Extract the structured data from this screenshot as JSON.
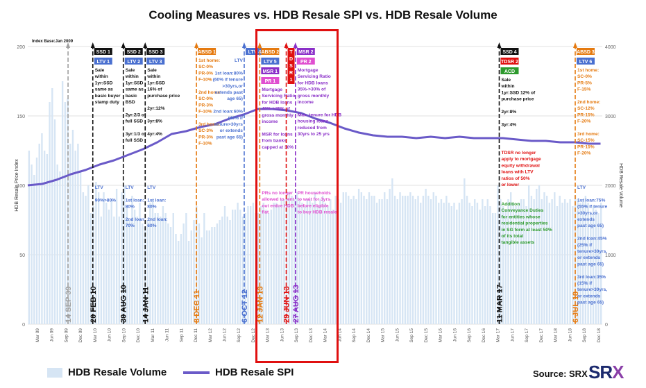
{
  "chart_data": {
    "type": "bar+line",
    "title": "Cooling Measures vs. HDB Resale SPI vs. HDB Resale Volume",
    "index_base": "Index Base:Jan 2009",
    "ylabel_left": "HDB Resale Price Index",
    "ylabel_right": "HDB Resale Volume",
    "ylim_left": [
      0,
      200
    ],
    "ylim_right": [
      0,
      4000
    ],
    "left_ticks": [
      "0",
      "50",
      "100",
      "150",
      "200"
    ],
    "right_ticks": [
      "0",
      "1000",
      "2000",
      "3000",
      "4000"
    ],
    "x_tick_labels": [
      "Mar 09",
      "Jun 09",
      "Sep 09",
      "Dec 09",
      "Mar 10",
      "Jun 10",
      "Sep 10",
      "Dec 10",
      "Mar 11",
      "Jun 11",
      "Sep 11",
      "Dec 11",
      "Mar 12",
      "Jun 12",
      "Sep 12",
      "Dec 12",
      "Mar 13",
      "Jun 13",
      "Sep 13",
      "Dec 13",
      "Mar 14",
      "Jun 14",
      "Sep 14",
      "Dec 14",
      "Mar 15",
      "Jun 15",
      "Sep 15",
      "Dec 15",
      "Mar 16",
      "Jun 16",
      "Sep 16",
      "Dec 16",
      "Mar 17",
      "Jun 17",
      "Sep 17",
      "Dec 17",
      "Mar 18",
      "Jun 18",
      "Sep 18",
      "Dec 18"
    ],
    "series": [
      {
        "name": "HDB Resale Volume",
        "type": "bar",
        "axis": "right",
        "values": [
          2500,
          2300,
          2150,
          2400,
          2600,
          2750,
          2500,
          2450,
          3200,
          3400,
          2950,
          2300,
          2200,
          3500,
          3200,
          3250,
          2600,
          2800,
          2500,
          2600,
          2200,
          1900,
          1850,
          2000,
          1600,
          1700,
          2050,
          1900,
          1550,
          1900,
          1750,
          1650,
          1800,
          1550,
          1950,
          1550,
          1900,
          2000,
          1700,
          1500,
          1850,
          1650,
          1550,
          1750,
          1450,
          1400,
          1500,
          1750,
          1800,
          1600,
          1600,
          1550,
          1700,
          1600,
          1450,
          1400,
          1600,
          1300,
          1200,
          1300,
          1450,
          1600,
          1200,
          1350,
          1500,
          1700,
          1450,
          1250,
          1600,
          1350,
          1350,
          1400,
          1400,
          1450,
          1500,
          1550,
          1700,
          1550,
          1500,
          1650,
          1650,
          1750,
          1650,
          1550,
          1600,
          1700,
          1700,
          1750,
          1600,
          1600,
          1700,
          1750,
          1650,
          1600,
          1650,
          1750,
          1750,
          1700,
          1800,
          1800,
          1850,
          1900,
          1850,
          1800,
          1900,
          1800,
          1750,
          1700,
          1800,
          1800,
          1750,
          1900,
          1700,
          1800,
          1850,
          1750,
          1700,
          1800,
          1650,
          1850,
          1800,
          1750,
          1900,
          1900,
          1850,
          1800,
          1850,
          1800,
          1950,
          1900,
          1850,
          1800,
          1900,
          1850,
          1850,
          1750,
          1800,
          1800,
          1900,
          1800,
          1950,
          2100,
          1850,
          1800,
          1900,
          1850,
          1850,
          1850,
          1900,
          1850,
          1800,
          1850,
          1750,
          1850,
          1950,
          1850,
          1800,
          1900,
          1850,
          1750,
          1800,
          1750,
          1850,
          1750,
          1700,
          1750,
          1650,
          1750,
          1800,
          2100,
          1850,
          1750,
          1700,
          1800,
          1750,
          1650,
          1800,
          1700,
          1800,
          1700,
          1600,
          1600,
          2000,
          1800,
          1700,
          1650,
          1800,
          1900,
          1750,
          1700,
          1750,
          1800,
          1800,
          1700,
          2000,
          1850,
          1800,
          1950,
          2000,
          1800,
          1900,
          1850,
          1750,
          1800,
          1900,
          1700,
          1850,
          1750,
          1800,
          1750,
          1800,
          1700,
          1850,
          1800,
          1750,
          1800,
          1850,
          1750,
          1600,
          1700,
          1650,
          1600,
          1750
        ]
      },
      {
        "name": "HDB Resale SPI",
        "type": "line",
        "axis": "left",
        "points": [
          [
            2009.0,
            100
          ],
          [
            2009.25,
            101
          ],
          [
            2009.5,
            104
          ],
          [
            2009.75,
            108
          ],
          [
            2010.0,
            111
          ],
          [
            2010.25,
            115
          ],
          [
            2010.5,
            118
          ],
          [
            2010.75,
            122
          ],
          [
            2011.0,
            126
          ],
          [
            2011.25,
            131
          ],
          [
            2011.5,
            137
          ],
          [
            2011.75,
            139
          ],
          [
            2012.0,
            142
          ],
          [
            2012.25,
            144
          ],
          [
            2012.5,
            148
          ],
          [
            2012.75,
            151
          ],
          [
            2013.0,
            155
          ],
          [
            2013.25,
            155
          ],
          [
            2013.5,
            154
          ],
          [
            2013.75,
            152
          ],
          [
            2014.0,
            148
          ],
          [
            2014.25,
            145
          ],
          [
            2014.5,
            141
          ],
          [
            2014.75,
            138
          ],
          [
            2015.0,
            136
          ],
          [
            2015.25,
            135
          ],
          [
            2015.5,
            135
          ],
          [
            2015.75,
            134
          ],
          [
            2016.0,
            135
          ],
          [
            2016.25,
            134
          ],
          [
            2016.5,
            135
          ],
          [
            2016.75,
            134
          ],
          [
            2017.0,
            134
          ],
          [
            2017.25,
            134
          ],
          [
            2017.5,
            133
          ],
          [
            2017.75,
            132
          ],
          [
            2018.0,
            132
          ],
          [
            2018.25,
            131
          ],
          [
            2018.5,
            131
          ],
          [
            2018.75,
            130
          ],
          [
            2018.95,
            130
          ]
        ]
      }
    ],
    "legend": [
      "HDB Resale Volume",
      "HDB Resale SPI"
    ],
    "legend_position": "bottom",
    "colors": {
      "volume": "#d6e5f4",
      "spi": "#6a5ac8",
      "black": "#111111",
      "blue": "#4a70d0",
      "orange": "#e57a10",
      "purple": "#8a2fc8",
      "red": "#e01010",
      "green": "#2d9a2d",
      "pink": "#e04fd0",
      "grey": "#a0a0a0",
      "highlight": "#e01010"
    },
    "events": [
      {
        "date_label": "14 SEP 09",
        "t": 2009.7,
        "color": "grey",
        "boxes": [],
        "texts": []
      },
      {
        "date_label": "20 FEB 10",
        "t": 2010.13,
        "color": "black",
        "boxes": [
          {
            "label": "SSD 1",
            "color": "black"
          },
          {
            "label": "LTV 1",
            "color": "blue"
          }
        ],
        "texts": [
          {
            "color": "black",
            "lines": [
              "Sale",
              "within",
              "1yr:SSD",
              "same as",
              "basic buyer",
              "stamp duty"
            ]
          },
          {
            "color": "blue",
            "lines": [
              "LTV",
              "",
              "90%>80%"
            ]
          }
        ]
      },
      {
        "date_label": "30 AUG 10",
        "t": 2010.66,
        "color": "black",
        "boxes": [
          {
            "label": "SSD 2",
            "color": "black"
          },
          {
            "label": "LTV 2",
            "color": "blue"
          }
        ],
        "texts": [
          {
            "color": "black",
            "lines": [
              "Sale",
              "within",
              "1yr:SSD",
              "same as",
              "basic",
              "BSD",
              "",
              "2yr:2/3 of",
              "full SSD",
              "",
              "3yr:1/3 of",
              "full SSD"
            ]
          },
          {
            "color": "blue",
            "lines": [
              "LTV",
              "",
              "1st loan:",
              "80%",
              "",
              "2nd loan:",
              "70%"
            ]
          }
        ]
      },
      {
        "date_label": "14 JAN 11",
        "t": 2011.04,
        "color": "black",
        "boxes": [
          {
            "label": "SSD 3",
            "color": "black"
          },
          {
            "label": "LTV 3",
            "color": "blue"
          }
        ],
        "texts": [
          {
            "color": "black",
            "lines": [
              "Sale",
              "within",
              "1yr:SSD",
              "16% of",
              "purchase price",
              "",
              "2yr:12%",
              "",
              "3yr:8%",
              "",
              "4yr:4%"
            ]
          },
          {
            "color": "blue",
            "lines": [
              "LTV",
              "",
              "1st loan:",
              "80%",
              "",
              "2nd loan:",
              "60%"
            ]
          }
        ]
      },
      {
        "date_label": "8 DEC 11",
        "t": 2011.93,
        "color": "orange",
        "boxes": [
          {
            "label": "ABSD 1",
            "color": "orange"
          }
        ],
        "texts": [
          {
            "color": "orange",
            "lines": [
              "1st home:",
              "SC-0%",
              "PR-0%",
              "F-10%",
              "",
              "2nd home:",
              "SC-0%",
              "PR-3%",
              "F-10%",
              "",
              "3rd home:",
              "SC-3%",
              "PR-3%",
              "F-10%"
            ]
          }
        ]
      },
      {
        "date_label": "6 OCT 12",
        "t": 2012.76,
        "color": "blue",
        "boxes": [
          {
            "label": "LTV 4",
            "color": "blue"
          }
        ],
        "texts": [
          {
            "color": "blue",
            "lines": [
              "LTV",
              "",
              "1st loan:80%",
              "(60% if tenure",
              ">30yrs,or",
              "extends past",
              "age 65)",
              "",
              "2nd loan:60%",
              "(40% if",
              "tenure>30yrs",
              "or extends",
              "past age 65)"
            ]
          }
        ]
      },
      {
        "date_label": "12 JAN 13",
        "t": 2013.03,
        "color": "orange",
        "boxes": [
          {
            "label": "ABSD 2",
            "color": "orange"
          },
          {
            "label": "LTV 5",
            "color": "blue"
          },
          {
            "label": "MSR 1",
            "color": "purple"
          },
          {
            "label": "PR 1",
            "color": "pink"
          }
        ],
        "texts": [
          {
            "color": "purple",
            "lines": [
              "Mortgage",
              "Servicing Ratio",
              "for HDB loans",
              "40%->35% of",
              "gross monthly",
              "income",
              "",
              "MSR for loans",
              "from banks",
              "capped at 30%"
            ]
          },
          {
            "color": "pink",
            "lines": [
              "PRs no longer",
              "allowed to rent",
              "out entire HDB",
              "flat"
            ]
          }
        ]
      },
      {
        "date_label": "29 JUN 13",
        "t": 2013.49,
        "color": "red",
        "boxes": [
          {
            "label": "T\nD\nS\nR\n1",
            "color": "red"
          }
        ],
        "texts": []
      },
      {
        "date_label": "27 AUG 13",
        "t": 2013.65,
        "color": "purple",
        "boxes": [
          {
            "label": "MSR 2",
            "color": "purple"
          },
          {
            "label": "PR 2",
            "color": "pink"
          }
        ],
        "texts": [
          {
            "color": "purple",
            "lines": [
              "Mortgage",
              "Servicing Ratio",
              "for HDB loans",
              "35%->30% of",
              "gross monthly",
              "income",
              "",
              "Max. tenure for HDB",
              "housing loans",
              "reduced from",
              "30yrs to 25 yrs"
            ]
          },
          {
            "color": "pink",
            "lines": [
              "PR households",
              "to wait for 3yrs",
              "before eligible",
              "to buy HDB resale"
            ]
          }
        ]
      },
      {
        "date_label": "11 MAR 17",
        "t": 2017.19,
        "color": "black",
        "boxes": [
          {
            "label": "SSD 4",
            "color": "black"
          },
          {
            "label": "TDSR 2",
            "color": "red"
          },
          {
            "label": "ACD",
            "color": "green"
          }
        ],
        "texts": [
          {
            "color": "black",
            "lines": [
              "Sale",
              "within",
              "1yr:SSD 12% of",
              "purchase price",
              "",
              "2yr:8%",
              "",
              "3yr:4%"
            ]
          },
          {
            "color": "red",
            "lines": [
              "TDSR no longer",
              "apply to mortgage",
              "equity withdrawal",
              "loans with LTV",
              "ratios of 50%",
              "or lower"
            ]
          },
          {
            "color": "green",
            "lines": [
              "Addition",
              "Conveyance Duties",
              "for entities whose",
              "residential properties",
              "in SG form at least 50%",
              "of its total",
              "tangible assets"
            ]
          }
        ]
      },
      {
        "date_label": "6 JUL 18",
        "t": 2018.51,
        "color": "orange",
        "boxes": [
          {
            "label": "ABSD 3",
            "color": "orange"
          },
          {
            "label": "LTV 6",
            "color": "blue"
          }
        ],
        "texts": [
          {
            "color": "orange",
            "lines": [
              "1st home:",
              "SC-0%",
              "PR-5%",
              "F-15%",
              "",
              "2nd home:",
              "SC-12%",
              "PR-15%",
              "F-20%",
              "",
              "3rd home:",
              "SC-15%",
              "PR-15%",
              "F-20%"
            ]
          },
          {
            "color": "blue",
            "lines": [
              "LTV",
              "",
              "1st loan:75%",
              "(55% if tenure",
              ">30yrs,or",
              "extends",
              "past age 65)",
              "",
              "2nd loan:45%",
              "(25% if",
              "tenure>30yrs,",
              "or extends",
              "past age 65)",
              "",
              "3rd loan:35%",
              "(15% if",
              "tenure>30yrs,",
              "or extends",
              "past age 65)"
            ]
          }
        ]
      }
    ],
    "source": "Source: SRX",
    "logo_text": "SRX"
  }
}
